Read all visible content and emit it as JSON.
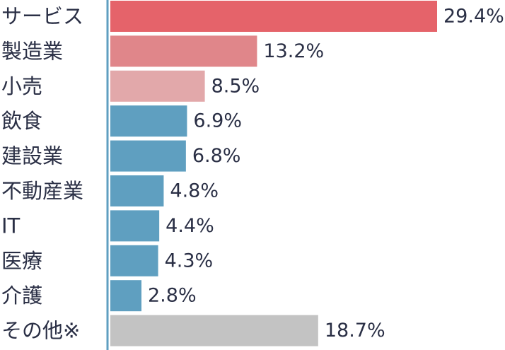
{
  "chart_data": {
    "type": "bar",
    "orientation": "horizontal",
    "categories": [
      "サービス",
      "製造業",
      "小売",
      "飲食",
      "建設業",
      "不動産業",
      "IT",
      "医療",
      "介護",
      "その他※"
    ],
    "values": [
      29.4,
      13.2,
      8.5,
      6.9,
      6.8,
      4.8,
      4.4,
      4.3,
      2.8,
      18.7
    ],
    "value_labels": [
      "29.4%",
      "13.2%",
      "8.5%",
      "6.9%",
      "6.8%",
      "4.8%",
      "4.4%",
      "4.3%",
      "2.8%",
      "18.7%"
    ],
    "colors": [
      "#e5636a",
      "#e0868a",
      "#e2a8aa",
      "#5f9fc0",
      "#5f9fc0",
      "#5f9fc0",
      "#5f9fc0",
      "#5f9fc0",
      "#5f9fc0",
      "#c3c3c3"
    ],
    "axis_color": "#5f9fc0",
    "title": "",
    "xlabel": "",
    "ylabel": "",
    "xlim": [
      0,
      29.4
    ],
    "grid": false,
    "legend": "none"
  }
}
